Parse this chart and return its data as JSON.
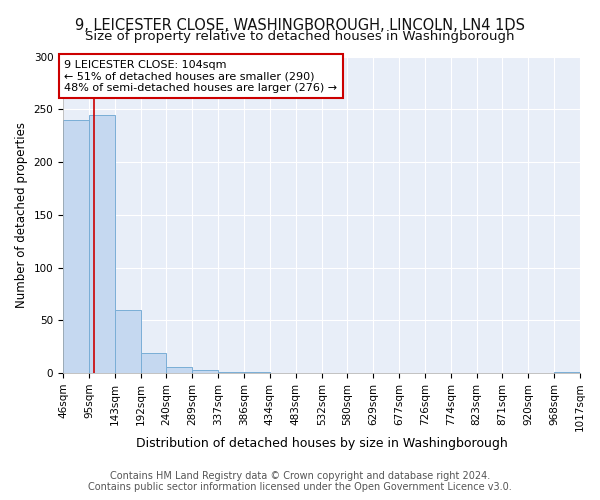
{
  "title": "9, LEICESTER CLOSE, WASHINGBOROUGH, LINCOLN, LN4 1DS",
  "subtitle": "Size of property relative to detached houses in Washingborough",
  "xlabel": "Distribution of detached houses by size in Washingborough",
  "ylabel": "Number of detached properties",
  "bin_edges": [
    46,
    95,
    143,
    192,
    240,
    289,
    337,
    386,
    434,
    483,
    532,
    580,
    629,
    677,
    726,
    774,
    823,
    871,
    920,
    968,
    1017
  ],
  "bar_heights": [
    240,
    245,
    60,
    19,
    6,
    3,
    1,
    1,
    0,
    0,
    0,
    0,
    0,
    0,
    0,
    0,
    0,
    0,
    0,
    1
  ],
  "bar_color": "#c5d8f0",
  "bar_edge_color": "#7aaed6",
  "property_size": 104,
  "annotation_text": "9 LEICESTER CLOSE: 104sqm\n← 51% of detached houses are smaller (290)\n48% of semi-detached houses are larger (276) →",
  "annotation_box_color": "#ffffff",
  "annotation_box_edge_color": "#cc0000",
  "vline_color": "#cc0000",
  "ylim": [
    0,
    300
  ],
  "yticks": [
    0,
    50,
    100,
    150,
    200,
    250,
    300
  ],
  "footer_text": "Contains HM Land Registry data © Crown copyright and database right 2024.\nContains public sector information licensed under the Open Government Licence v3.0.",
  "background_color": "#ffffff",
  "plot_background_color": "#e8eef8",
  "grid_color": "#ffffff",
  "title_fontsize": 10.5,
  "subtitle_fontsize": 9.5,
  "annotation_fontsize": 8,
  "footer_fontsize": 7,
  "ylabel_fontsize": 8.5,
  "xlabel_fontsize": 9,
  "tick_fontsize": 7.5
}
